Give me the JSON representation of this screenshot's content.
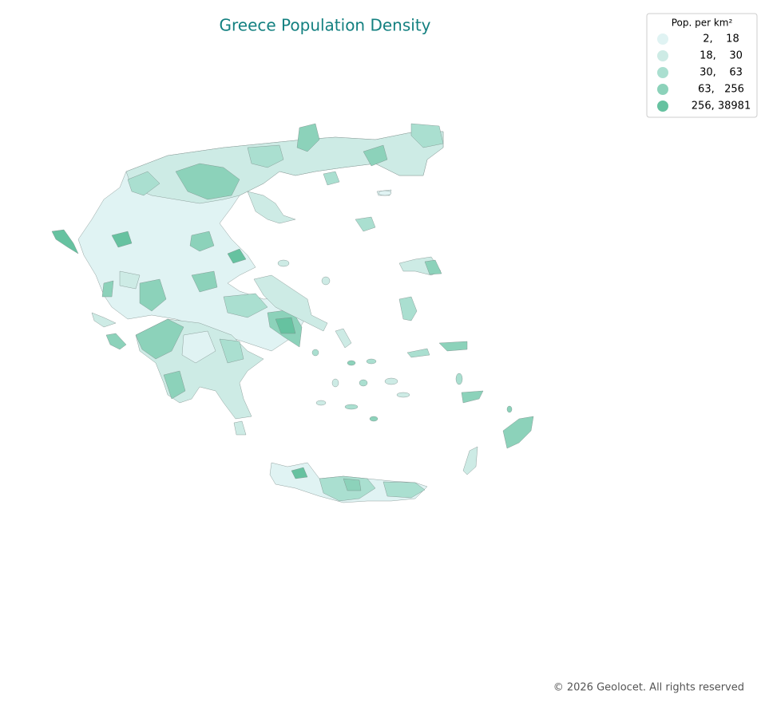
{
  "title": "Greece Population Density",
  "legend": {
    "title": "Pop. per km²",
    "items": [
      {
        "label": "2,    18",
        "color": "#e0f3f3"
      },
      {
        "label": "18,    30",
        "color": "#cdebe5"
      },
      {
        "label": "30,    63",
        "color": "#aadfd0"
      },
      {
        "label": "63,   256",
        "color": "#8cd2ba"
      },
      {
        "label": "256, 38981",
        "color": "#66c2a0"
      }
    ]
  },
  "footer": "© 2026 Geolocet. All rights reserved"
}
